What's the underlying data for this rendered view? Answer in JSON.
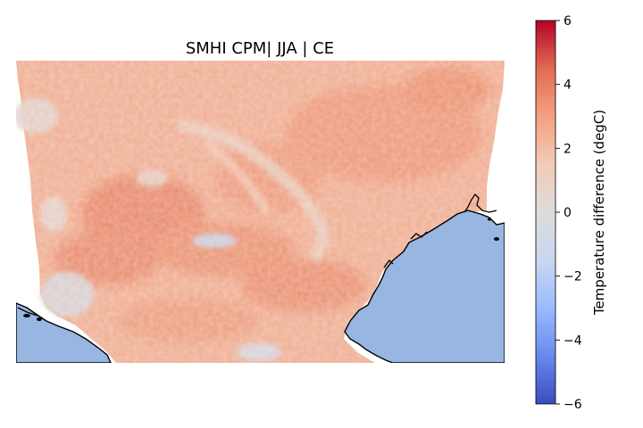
{
  "figure": {
    "title": "SMHI CPM| JJA | CE"
  },
  "map": {
    "sea_color": "#98b6e2",
    "coastline_color": "#000000",
    "background_color": "#ffffff"
  },
  "colorbar": {
    "label": "Temperature difference (degC)",
    "colormap": "coolwarm",
    "vmin": -6,
    "vmax": 6,
    "ticks": [
      -6,
      -4,
      -2,
      0,
      2,
      4,
      6
    ],
    "tick_labels": [
      "−6",
      "−4",
      "−2",
      "0",
      "2",
      "4",
      "6"
    ],
    "stops": [
      "#3b4cc0",
      "#6889ee",
      "#9abbff",
      "#c9d7f0",
      "#dddcdc",
      "#f2cbb7",
      "#f5a081",
      "#e26a52",
      "#b40426"
    ]
  },
  "chart_data": {
    "type": "heatmap",
    "title": "SMHI CPM| JJA | CE",
    "colorbar_label": "Temperature difference (degC)",
    "value_range": [
      -6,
      6
    ],
    "typical_land_values": [
      1.5,
      3
    ],
    "cool_areas_values": [
      -1,
      0.5
    ]
  }
}
